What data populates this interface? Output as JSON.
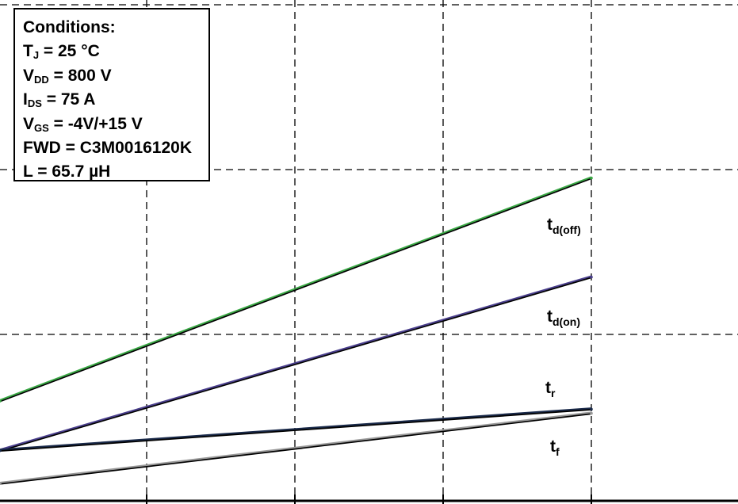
{
  "chart_data": {
    "type": "line",
    "title": "",
    "xlabel": "",
    "ylabel": "",
    "grid": true,
    "grid_style": "dashed",
    "annotation": {
      "heading": "Conditions:",
      "lines": [
        {
          "main": "T",
          "sub": "J",
          "rest": " = 25 °C"
        },
        {
          "main": "V",
          "sub": "DD",
          "rest": " = 800 V"
        },
        {
          "main": "I",
          "sub": "DS",
          "rest": " = 75 A"
        },
        {
          "main": "V",
          "sub": "GS",
          "rest": " = -4V/+15 V"
        },
        {
          "main": "FWD = C3M0016120K",
          "sub": "",
          "rest": ""
        },
        {
          "main": "L = 65.7 µH",
          "sub": "",
          "rest": ""
        }
      ]
    },
    "series": [
      {
        "name": "td(off)",
        "label_main": "t",
        "label_sub": "d(off)",
        "color": "#3aa845",
        "x": [
          0,
          4
        ],
        "y": [
          2.4,
          7.8
        ]
      },
      {
        "name": "td(on)",
        "label_main": "t",
        "label_sub": "d(on)",
        "color": "#4a3f8c",
        "x": [
          0,
          4
        ],
        "y": [
          1.2,
          5.4
        ]
      },
      {
        "name": "tr",
        "label_main": "t",
        "label_sub": "r",
        "color": "#1a2a4a",
        "x": [
          0,
          4
        ],
        "y": [
          1.2,
          2.2
        ]
      },
      {
        "name": "tf",
        "label_main": "t",
        "label_sub": "f",
        "color": "#999999",
        "x": [
          0,
          4
        ],
        "y": [
          0.4,
          2.1
        ]
      }
    ]
  }
}
